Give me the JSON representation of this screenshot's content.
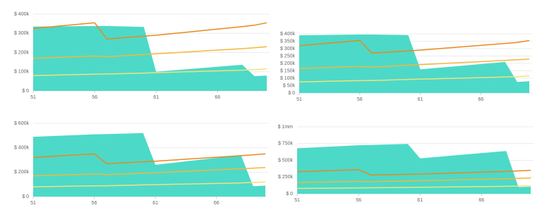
{
  "chart_data": [
    {
      "type": "area-line",
      "x": [
        51,
        56,
        57,
        60,
        61,
        68,
        69,
        70
      ],
      "xlim": [
        51,
        70
      ],
      "xticks": [
        51,
        56,
        61,
        66
      ],
      "ylim": [
        0,
        400000
      ],
      "yticks": [
        {
          "value": 0,
          "label": "$ 0"
        },
        {
          "value": 100000,
          "label": "$ 100k"
        },
        {
          "value": 200000,
          "label": "$ 200k"
        },
        {
          "value": 300000,
          "label": "$ 300k"
        },
        {
          "value": 400000,
          "label": "$ 400k"
        }
      ],
      "grid": true,
      "series": [
        {
          "kind": "area",
          "color": "#4dd9c8",
          "values": [
            335000,
            338000,
            338000,
            333000,
            100000,
            136000,
            77000,
            80000
          ]
        },
        {
          "kind": "line",
          "color": "#e8891c",
          "values": [
            325000,
            355000,
            270000,
            285000,
            290000,
            335000,
            342000,
            355000
          ]
        },
        {
          "kind": "line",
          "color": "#f5b63a",
          "values": [
            170000,
            182000,
            178000,
            190000,
            193000,
            220000,
            225000,
            230000
          ]
        },
        {
          "kind": "line",
          "color": "#f1e27a",
          "values": [
            80000,
            87000,
            88000,
            93000,
            95000,
            108000,
            111000,
            115000
          ]
        }
      ]
    },
    {
      "type": "area-line",
      "x": [
        51,
        56,
        57,
        60,
        61,
        68,
        69,
        70
      ],
      "xlim": [
        51,
        70
      ],
      "xticks": [
        51,
        56,
        61,
        66
      ],
      "ylim": [
        0,
        400000
      ],
      "yticks": [
        {
          "value": 0,
          "label": "$ 0"
        },
        {
          "value": 50000,
          "label": "$ 50k"
        },
        {
          "value": 100000,
          "label": "$ 100k"
        },
        {
          "value": 150000,
          "label": "$ 150k"
        },
        {
          "value": 200000,
          "label": "$ 200k"
        },
        {
          "value": 250000,
          "label": "$ 250k"
        },
        {
          "value": 300000,
          "label": "$ 300k"
        },
        {
          "value": 350000,
          "label": "$ 350k"
        },
        {
          "value": 400000,
          "label": "$ 400k"
        }
      ],
      "grid": true,
      "series": [
        {
          "kind": "area",
          "color": "#4dd9c8",
          "values": [
            390000,
            395000,
            395000,
            392000,
            160000,
            210000,
            75000,
            80000
          ]
        },
        {
          "kind": "line",
          "color": "#e8891c",
          "values": [
            320000,
            355000,
            270000,
            285000,
            290000,
            335000,
            342000,
            355000
          ]
        },
        {
          "kind": "line",
          "color": "#f5b63a",
          "values": [
            165000,
            180000,
            175000,
            188000,
            192000,
            220000,
            225000,
            230000
          ]
        },
        {
          "kind": "line",
          "color": "#f1e27a",
          "values": [
            75000,
            84000,
            85000,
            92000,
            94000,
            108000,
            111000,
            115000
          ]
        }
      ]
    },
    {
      "type": "area-line",
      "x": [
        51,
        56,
        57,
        60,
        61,
        68,
        69,
        70
      ],
      "xlim": [
        51,
        70
      ],
      "xticks": [
        51,
        56,
        61,
        66
      ],
      "ylim": [
        0,
        600000
      ],
      "yticks": [
        {
          "value": 0,
          "label": "$ 0"
        },
        {
          "value": 200000,
          "label": "$ 200k"
        },
        {
          "value": 400000,
          "label": "$ 400k"
        },
        {
          "value": 600000,
          "label": "$ 600k"
        }
      ],
      "grid": true,
      "series": [
        {
          "kind": "area",
          "color": "#4dd9c8",
          "values": [
            490000,
            510000,
            512000,
            520000,
            260000,
            340000,
            85000,
            90000
          ]
        },
        {
          "kind": "line",
          "color": "#e8891c",
          "values": [
            320000,
            350000,
            270000,
            285000,
            290000,
            335000,
            342000,
            350000
          ]
        },
        {
          "kind": "line",
          "color": "#f5b63a",
          "values": [
            170000,
            185000,
            180000,
            192000,
            196000,
            228000,
            233000,
            238000
          ]
        },
        {
          "kind": "line",
          "color": "#f1e27a",
          "values": [
            80000,
            88000,
            89000,
            96000,
            98000,
            112000,
            116000,
            120000
          ]
        }
      ]
    },
    {
      "type": "area-line",
      "x": [
        51,
        56,
        57,
        60,
        61,
        68,
        69,
        70
      ],
      "xlim": [
        51,
        70
      ],
      "xticks": [
        51,
        56,
        61,
        66
      ],
      "ylim": [
        0,
        1000000
      ],
      "yticks": [
        {
          "value": 0,
          "label": "$ 0"
        },
        {
          "value": 250000,
          "label": "$ 250k"
        },
        {
          "value": 500000,
          "label": "$ 500k"
        },
        {
          "value": 750000,
          "label": "$ 750k"
        },
        {
          "value": 1000000,
          "label": "$ 1mm"
        }
      ],
      "grid": true,
      "series": [
        {
          "kind": "area",
          "color": "#4dd9c8",
          "values": [
            680000,
            725000,
            730000,
            745000,
            530000,
            640000,
            100000,
            105000
          ]
        },
        {
          "kind": "line",
          "color": "#e8891c",
          "values": [
            330000,
            360000,
            280000,
            290000,
            295000,
            335000,
            342000,
            350000
          ]
        },
        {
          "kind": "line",
          "color": "#f5b63a",
          "values": [
            170000,
            185000,
            180000,
            192000,
            196000,
            225000,
            230000,
            235000
          ]
        },
        {
          "kind": "line",
          "color": "#f1e27a",
          "values": [
            80000,
            88000,
            89000,
            96000,
            98000,
            112000,
            116000,
            120000
          ]
        }
      ]
    }
  ]
}
